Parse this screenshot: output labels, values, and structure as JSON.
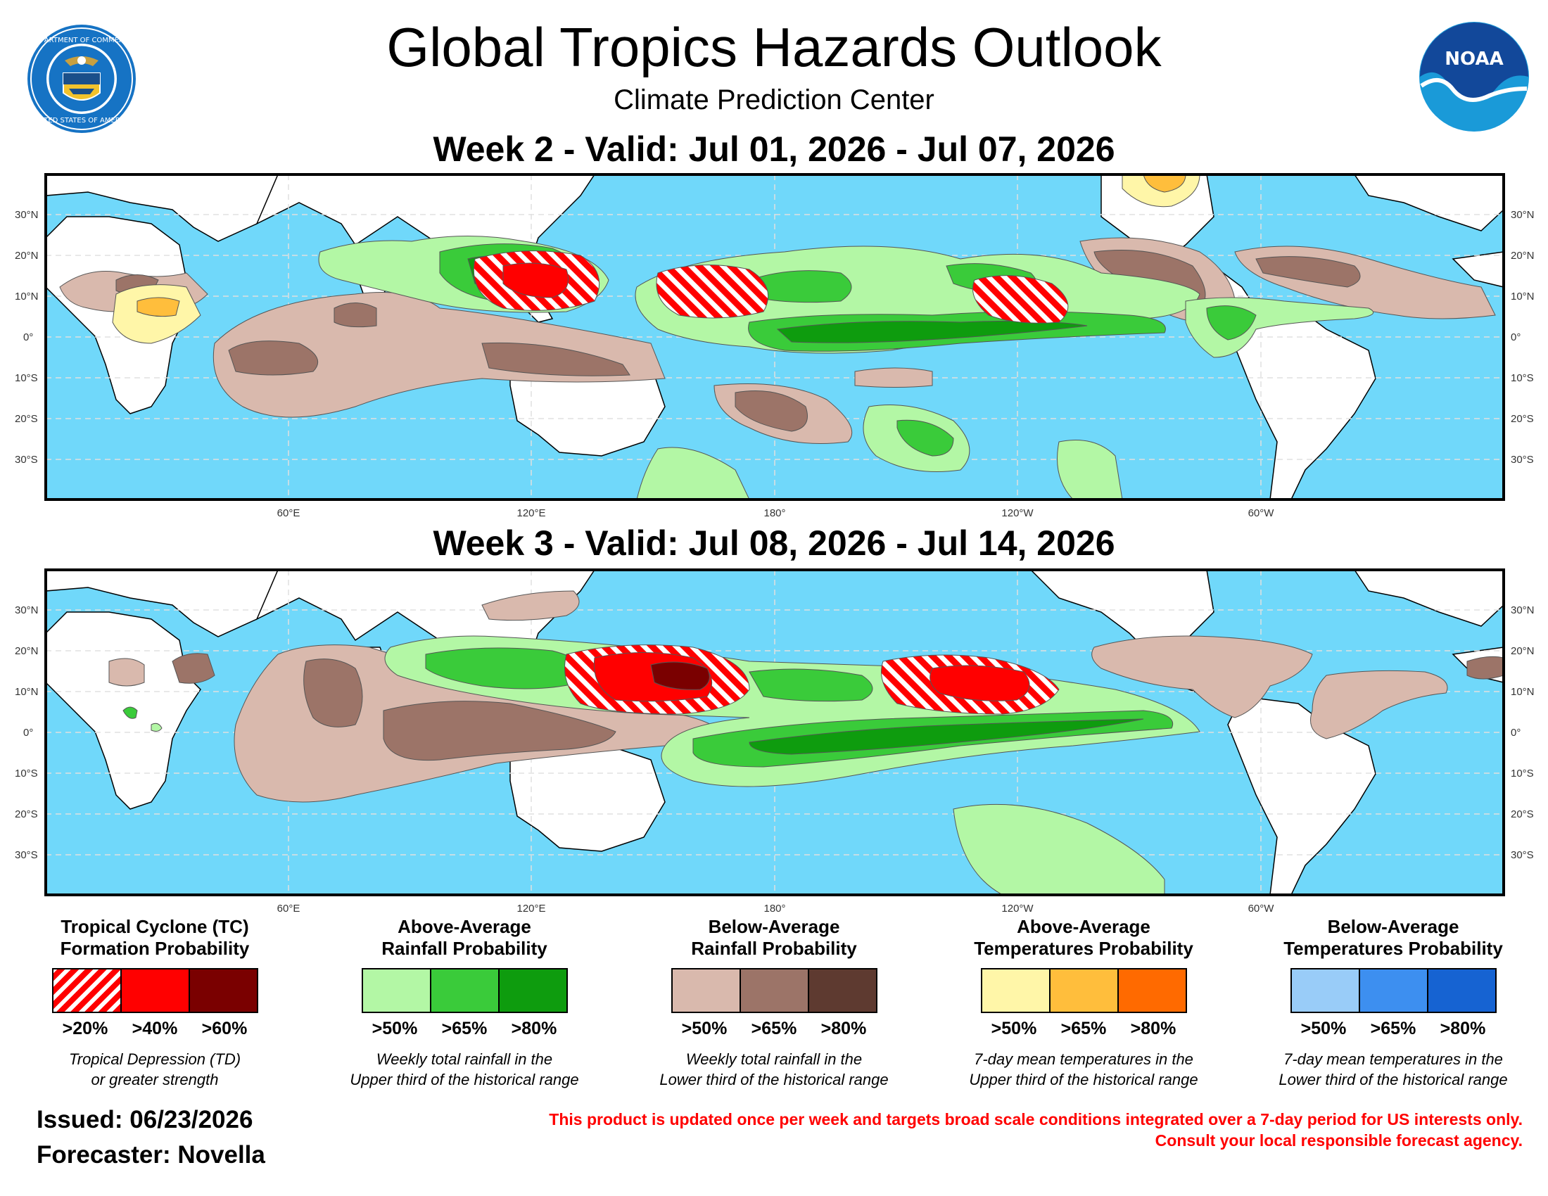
{
  "header": {
    "title": "Global Tropics Hazards Outlook",
    "subtitle": "Climate Prediction Center"
  },
  "logos": {
    "left": "doc-seal",
    "right": "noaa-logo",
    "noaa_text": "NOAA"
  },
  "week2": {
    "title": "Week 2 - Valid: Jul 01, 2026 - Jul 07, 2026"
  },
  "week3": {
    "title": "Week 3 - Valid: Jul 08, 2026 - Jul 14, 2026"
  },
  "map_axes": {
    "lat_labels": [
      "30°N",
      "20°N",
      "10°N",
      "0°",
      "10°S",
      "20°S",
      "30°S"
    ],
    "lon_labels": [
      "60°E",
      "120°E",
      "180°",
      "120°W",
      "60°W"
    ]
  },
  "legend": [
    {
      "title1": "Tropical Cyclone (TC)",
      "title2": "Formation Probability",
      "labels": [
        ">20%",
        ">40%",
        ">60%"
      ],
      "colors": [
        "hatch",
        "#ff0000",
        "#7a0000"
      ],
      "desc1": "Tropical Depression (TD)",
      "desc2": "or greater strength"
    },
    {
      "title1": "Above-Average",
      "title2": "Rainfall Probability",
      "labels": [
        ">50%",
        ">65%",
        ">80%"
      ],
      "colors": [
        "#b3f7a5",
        "#3acb3a",
        "#0e9c0e"
      ],
      "desc1": "Weekly total rainfall in the",
      "desc2": "Upper third of the historical range"
    },
    {
      "title1": "Below-Average",
      "title2": "Rainfall Probability",
      "labels": [
        ">50%",
        ">65%",
        ">80%"
      ],
      "colors": [
        "#d9b9ad",
        "#9c7468",
        "#5e3a30"
      ],
      "desc1": "Weekly total rainfall in the",
      "desc2": "Lower third of the historical range"
    },
    {
      "title1": "Above-Average",
      "title2": "Temperatures Probability",
      "labels": [
        ">50%",
        ">65%",
        ">80%"
      ],
      "colors": [
        "#fff6a8",
        "#ffbe3c",
        "#ff6a00"
      ],
      "desc1": "7-day mean temperatures in the",
      "desc2": "Upper third of the historical range"
    },
    {
      "title1": "Below-Average",
      "title2": "Temperatures Probability",
      "labels": [
        ">50%",
        ">65%",
        ">80%"
      ],
      "colors": [
        "#99ccf8",
        "#3d8ff0",
        "#1663d2"
      ],
      "desc1": "7-day mean temperatures in the",
      "desc2": "Lower third of the historical range"
    }
  ],
  "footer": {
    "issued": "Issued: 06/23/2026",
    "forecaster": "Forecaster: Novella",
    "disclaimer1": "This product is updated once per week and targets broad scale conditions integrated over a 7-day period for US interests only.",
    "disclaimer2": "Consult your local responsible forecast agency."
  },
  "colors": {
    "ocean": "#70d8fa",
    "land": "#ffffff",
    "tc_red": "#ff0000",
    "tc_dark": "#7a0000"
  }
}
